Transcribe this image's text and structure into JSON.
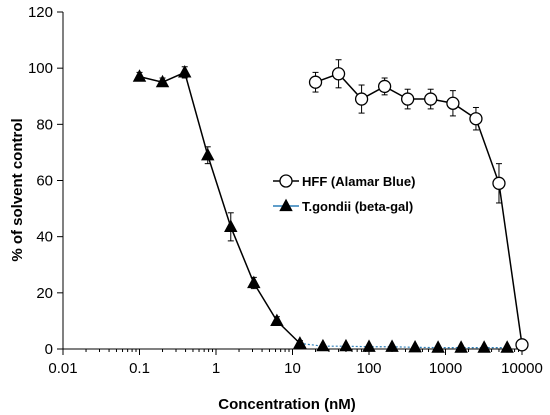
{
  "chart_data": {
    "type": "scatter",
    "xscale": "log",
    "xlim": [
      0.01,
      10000
    ],
    "ylim": [
      0,
      120
    ],
    "xticks": [
      0.01,
      0.1,
      1,
      10,
      100,
      1000,
      10000
    ],
    "xtick_labels": [
      "0.01",
      "0.1",
      "1",
      "10",
      "100",
      "1000",
      "10000"
    ],
    "yticks": [
      0,
      20,
      40,
      60,
      80,
      100,
      120
    ],
    "ytick_labels": [
      "0",
      "20",
      "40",
      "60",
      "80",
      "100",
      "120"
    ],
    "xlabel": "Concentration (nM)",
    "ylabel": "% of  solvent control",
    "grid": false,
    "legend_position": "center-right",
    "series": [
      {
        "name": "HFF (Alamar Blue)",
        "marker": "open-circle",
        "color": "#000000",
        "line_color": "#000000",
        "x": [
          20,
          40,
          80,
          160,
          320,
          640,
          1250,
          2500,
          5000,
          10000
        ],
        "y": [
          95,
          98,
          89,
          93.5,
          89,
          89,
          87.5,
          82,
          59,
          1.5
        ],
        "yerr": [
          3.5,
          5,
          5,
          3,
          3.5,
          3.5,
          4.5,
          4,
          7,
          1
        ]
      },
      {
        "name": "T.gondii (beta-gal)",
        "marker": "filled-triangle",
        "color": "#000000",
        "line_color": "#000000",
        "legend_line_color": "#2c7fb8",
        "x": [
          0.1,
          0.2,
          0.39,
          0.78,
          1.56,
          3.12,
          6.25,
          12.5,
          25,
          50,
          100,
          200,
          400,
          800,
          1600,
          3200,
          6400
        ],
        "y": [
          97,
          95,
          98.5,
          69,
          43.5,
          23.5,
          10,
          2,
          1,
          1,
          0.8,
          0.8,
          0.6,
          0.5,
          0.5,
          0.5,
          0.5
        ],
        "yerr": [
          1.5,
          1.5,
          2,
          3,
          5,
          2,
          1.5,
          1,
          0.5,
          0.5,
          0.5,
          0.5,
          0.5,
          0.5,
          0.5,
          0.5,
          0.5
        ],
        "dotted_tail_after_x": 12.5
      }
    ]
  }
}
